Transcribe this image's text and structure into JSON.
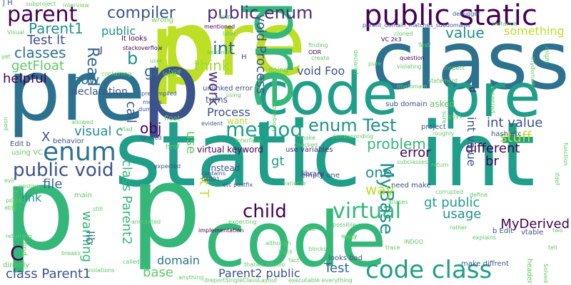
{
  "word_cloud": {
    "words": [
      {
        "text": "pre",
        "color": "#bddf26"
      },
      {
        "text": "class",
        "color": "#2c728e"
      },
      {
        "text": "pre",
        "color": "#2c728e"
      },
      {
        "text": "code",
        "color": "#1f9e89"
      },
      {
        "text": "pre",
        "color": "#1f9e89"
      },
      {
        "text": "p",
        "color": "#bddf26"
      },
      {
        "text": "p",
        "color": "#3b528b"
      },
      {
        "text": "static",
        "color": "#1f9e89"
      },
      {
        "text": "int",
        "color": "#1f9e89"
      },
      {
        "text": "p",
        "color": "#35b779"
      },
      {
        "text": "p",
        "color": "#35b779"
      },
      {
        "text": "pre",
        "color": "#35b779"
      },
      {
        "text": "code",
        "color": "#35b779"
      },
      {
        "text": "public static",
        "color": "#440154"
      },
      {
        "text": "parent",
        "color": "#440154"
      },
      {
        "text": "compiler",
        "color": "#3b528b"
      },
      {
        "text": "public enum",
        "color": "#472d7b"
      },
      {
        "text": "enum",
        "color": "#2c728e"
      },
      {
        "text": "method",
        "color": "#1f9e89"
      },
      {
        "text": "enum Test",
        "color": "#21918c"
      },
      {
        "text": "virtual",
        "color": "#35b779"
      },
      {
        "text": "code class",
        "color": "#1f9e89"
      },
      {
        "text": "public void",
        "color": "#3b528b"
      },
      {
        "text": "child",
        "color": "#440154"
      },
      {
        "text": "MyBase",
        "color": "#21918c"
      },
      {
        "text": "Parent1",
        "color": "#21918c"
      },
      {
        "text": "Test lt",
        "color": "#3b528b"
      },
      {
        "text": "classes",
        "color": "#2c728e"
      },
      {
        "text": "getFloat",
        "color": "#5ec962"
      },
      {
        "text": "helpful",
        "color": "#440154"
      },
      {
        "text": "now",
        "color": "#2c728e"
      },
      {
        "text": "void Process",
        "color": "#3b528b"
      },
      {
        "text": "value",
        "color": "#21918c"
      },
      {
        "text": "int",
        "color": "#31688e"
      },
      {
        "text": "b",
        "color": "#21918c"
      },
      {
        "text": "Read",
        "color": "#31688e"
      },
      {
        "text": "gt",
        "color": "#31688e"
      },
      {
        "text": "think",
        "color": "#a0da39"
      },
      {
        "text": "work",
        "color": "#472d7b"
      },
      {
        "text": "void Foo",
        "color": "#3b528b"
      },
      {
        "text": "Process",
        "color": "#3b528b"
      },
      {
        "text": "obj",
        "color": "#440154"
      },
      {
        "text": "use",
        "color": "#5ec962"
      },
      {
        "text": "problem",
        "color": "#35b779"
      },
      {
        "text": "stuff",
        "color": "#bddf26"
      },
      {
        "text": "int value",
        "color": "#3b528b"
      },
      {
        "text": "file",
        "color": "#31688e"
      },
      {
        "text": "link",
        "color": "#21918c"
      },
      {
        "text": "warning",
        "color": "#35b779"
      },
      {
        "text": "class Parent2",
        "color": "#35b779"
      },
      {
        "text": "visual c",
        "color": "#21918c"
      },
      {
        "text": "call",
        "color": "#3b528b"
      },
      {
        "text": "one",
        "color": "#21918c"
      },
      {
        "text": "error",
        "color": "#440154"
      },
      {
        "text": "different",
        "color": "#440154"
      },
      {
        "text": "way",
        "color": "#bddf26"
      },
      {
        "text": "MyDerived",
        "color": "#440154"
      },
      {
        "text": "gt public",
        "color": "#1f9e89"
      },
      {
        "text": "int value",
        "color": "#3b528b"
      },
      {
        "text": "br",
        "color": "#440154"
      },
      {
        "text": "usage",
        "color": "#21918c"
      },
      {
        "text": "C",
        "color": "#440154"
      },
      {
        "text": "class Parent1",
        "color": "#3b528b"
      },
      {
        "text": "base",
        "color": "#5ec962"
      },
      {
        "text": "domain",
        "color": "#2c728e"
      },
      {
        "text": "Parent2 public",
        "color": "#3b528b"
      },
      {
        "text": "Test",
        "color": "#31688e"
      },
      {
        "text": "lib",
        "color": "#2c728e"
      },
      {
        "text": "lt T",
        "color": "#bddf26"
      },
      {
        "text": "something",
        "color": "#bddf26"
      },
      {
        "text": "public",
        "color": "#21918c"
      },
      {
        "text": "gt",
        "color": "#1f9e89"
      },
      {
        "text": "X",
        "color": "#3b528b"
      },
      {
        "text": "virtual keyword",
        "color": "#440154"
      },
      {
        "text": "declaration",
        "color": "#3b528b"
      },
      {
        "text": "interview",
        "color": "#6ece58"
      },
      {
        "text": "wrong",
        "color": "#6ece58"
      },
      {
        "text": "It looks",
        "color": "#440154"
      },
      {
        "text": "stackoverflow",
        "color": "#440154"
      },
      {
        "text": "layout",
        "color": "#6ece58"
      },
      {
        "text": "containing",
        "color": "#6ece58"
      },
      {
        "text": "unlinked error",
        "color": "#3b528b"
      },
      {
        "text": "turns",
        "color": "#3b528b"
      },
      {
        "text": "want",
        "color": "#bddf26"
      },
      {
        "text": "sub domain",
        "color": "#3b528b"
      },
      {
        "text": "asked",
        "color": "#5ec962"
      },
      {
        "text": "project",
        "color": "#3b528b"
      },
      {
        "text": "hash etc",
        "color": "#3b528b"
      },
      {
        "text": "float",
        "color": "#5ec962"
      },
      {
        "text": "href",
        "color": "#5ec962"
      },
      {
        "text": "behavior",
        "color": "#3b528b"
      },
      {
        "text": "using VC",
        "color": "#5ec962"
      },
      {
        "text": "Edit b",
        "color": "#3b528b"
      },
      {
        "text": "instead",
        "color": "#3b528b"
      },
      {
        "text": "library",
        "color": "#472d7b"
      },
      {
        "text": "use variables",
        "color": "#472d7b"
      },
      {
        "text": "empty one",
        "color": "#3b528b"
      },
      {
        "text": "need make",
        "color": "#3b528b"
      },
      {
        "text": "make diffrent",
        "color": "#3b528b"
      },
      {
        "text": "looks bad",
        "color": "#3b528b"
      },
      {
        "text": "b Edit",
        "color": "#3b528b"
      },
      {
        "text": "vtable",
        "color": "#3b528b"
      },
      {
        "text": "header",
        "color": "#5ec962"
      },
      {
        "text": "mentioned",
        "color": "#440154"
      },
      {
        "text": "ODR",
        "color": "#440154"
      },
      {
        "text": "VC 2k3",
        "color": "#440154"
      },
      {
        "text": "question",
        "color": "#440154"
      },
      {
        "text": "statement",
        "color": "#5ec962"
      },
      {
        "text": "means",
        "color": "#3b528b"
      },
      {
        "text": "precompiled",
        "color": "#3b528b"
      },
      {
        "text": "instance",
        "color": "#5ec962"
      },
      {
        "text": "debugger",
        "color": "#3b528b"
      },
      {
        "text": "parent_domain_matches_subdomains",
        "color": "#3b528b"
      },
      {
        "text": "subproject",
        "color": "#5ec962"
      },
      {
        "text": "J H",
        "color": "#3b528b"
      },
      {
        "text": "dumped",
        "color": "#3b528b"
      },
      {
        "text": "ignored",
        "color": "#3b528b"
      },
      {
        "text": "evident",
        "color": "#3b528b"
      },
      {
        "text": "expected",
        "color": "#3b528b"
      },
      {
        "text": "contains",
        "color": "#3b528b"
      },
      {
        "text": "C4091",
        "color": "#3b528b"
      },
      {
        "text": "etc postfix",
        "color": "#3b528b"
      },
      {
        "text": "implementation",
        "color": "#440154"
      },
      {
        "text": "thanks",
        "color": "#5ec962"
      },
      {
        "text": "Studio",
        "color": "#5ec962"
      },
      {
        "text": "track",
        "color": "#5ec962"
      },
      {
        "text": "fact",
        "color": "#5ec962"
      },
      {
        "text": "although",
        "color": "#5ec962"
      },
      {
        "text": "blocks",
        "color": "#5ec962"
      },
      {
        "text": "INDOO",
        "color": "#5ec962"
      },
      {
        "text": "possible",
        "color": "#5ec962"
      },
      {
        "text": "every",
        "color": "#5ec962"
      },
      {
        "text": "mail",
        "color": "#5ec962"
      },
      {
        "text": "next",
        "color": "#5ec962"
      },
      {
        "text": "aliases",
        "color": "#5ec962"
      },
      {
        "text": "corrupted",
        "color": "#5ec962"
      },
      {
        "text": "define",
        "color": "#5ec962"
      },
      {
        "text": "explains",
        "color": "#5ec962"
      },
      {
        "text": "rather",
        "color": "#5ec962"
      },
      {
        "text": "two",
        "color": "#5ec962"
      },
      {
        "text": "tell",
        "color": "#5ec962"
      },
      {
        "text": "Solved",
        "color": "#5ec962"
      },
      {
        "text": "ifdef",
        "color": "#5ec962"
      },
      {
        "text": "function",
        "color": "#5ec962"
      },
      {
        "text": "answered",
        "color": "#5ec962"
      },
      {
        "text": "mydomain",
        "color": "#5ec962"
      },
      {
        "text": "d",
        "color": "#440154"
      },
      {
        "text": "sure",
        "color": "#5ec962"
      },
      {
        "text": "roughly",
        "color": "#5ec962"
      },
      {
        "text": "guys",
        "color": "#5ec962"
      },
      {
        "text": "somebody",
        "color": "#5ec962"
      },
      {
        "text": "Test'",
        "color": "#5ec962"
      },
      {
        "text": "pure",
        "color": "#5ec962"
      },
      {
        "text": "violating",
        "color": "#5ec962"
      },
      {
        "text": "cloned",
        "color": "#5ec962"
      },
      {
        "text": "declared",
        "color": "#5ec962"
      },
      {
        "text": "finding",
        "color": "#5ec962"
      },
      {
        "text": "create",
        "color": "#5ec962"
      },
      {
        "text": "later",
        "color": "#5ec962"
      },
      {
        "text": "sentinel",
        "color": "#5ec962"
      },
      {
        "text": "using",
        "color": "#5ec962"
      },
      {
        "text": "going",
        "color": "#5ec962"
      },
      {
        "text": "type",
        "color": "#5ec962"
      },
      {
        "text": "allowed",
        "color": "#5ec962"
      },
      {
        "text": "used",
        "color": "#5ec962"
      },
      {
        "text": "Visual",
        "color": "#5ec962"
      },
      {
        "text": "yet",
        "color": "#5ec962"
      },
      {
        "text": "evil",
        "color": "#5ec962"
      },
      {
        "text": "posting",
        "color": "#5ec962"
      },
      {
        "text": "Anyway",
        "color": "#5ec962"
      },
      {
        "text": "posted",
        "color": "#5ec962"
      },
      {
        "text": "able",
        "color": "#5ec962"
      },
      {
        "text": "main",
        "color": "#5ec962"
      },
      {
        "text": "still",
        "color": "#5ec962"
      },
      {
        "text": "violations",
        "color": "#5ec962"
      },
      {
        "text": "returning",
        "color": "#5ec962"
      },
      {
        "text": "find",
        "color": "#5ec962"
      },
      {
        "text": "directly",
        "color": "#5ec962"
      },
      {
        "text": "breaks",
        "color": "#5ec962"
      },
      {
        "text": "called",
        "color": "#5ec962"
      },
      {
        "text": "anything",
        "color": "#5ec962"
      },
      {
        "text": "dreportSingleClassLayout",
        "color": "#5ec962"
      },
      {
        "text": "executable everything",
        "color": "#5ec962"
      },
      {
        "text": "trace",
        "color": "#5ec962"
      },
      {
        "text": "subclasses",
        "color": "#5ec962"
      },
      {
        "text": "return",
        "color": "#5ec962"
      },
      {
        "text": "corresponding",
        "color": "#5ec962"
      },
      {
        "text": "checked",
        "color": "#5ec962"
      },
      {
        "text": "make",
        "color": "#5ec962"
      },
      {
        "text": "interface",
        "color": "#5ec962"
      },
      {
        "text": "Vlad",
        "color": "#5ec962"
      },
      {
        "text": "expecting",
        "color": "#5ec962"
      },
      {
        "text": "variable",
        "color": "#5ec962"
      },
      {
        "text": "annotated",
        "color": "#5ec962"
      },
      {
        "text": "inspect",
        "color": "#5ec962"
      },
      {
        "text": "might",
        "color": "#5ec962"
      },
      {
        "text": "mydomain",
        "color": "#5ec962"
      },
      {
        "text": "amp",
        "color": "#5ec962"
      },
      {
        "text": "I",
        "color": "#5ec962"
      },
      {
        "text": "J",
        "color": "#440154"
      },
      {
        "text": "H",
        "color": "#3b528b"
      },
      {
        "text": "user",
        "color": "#5ec962"
      }
    ]
  }
}
